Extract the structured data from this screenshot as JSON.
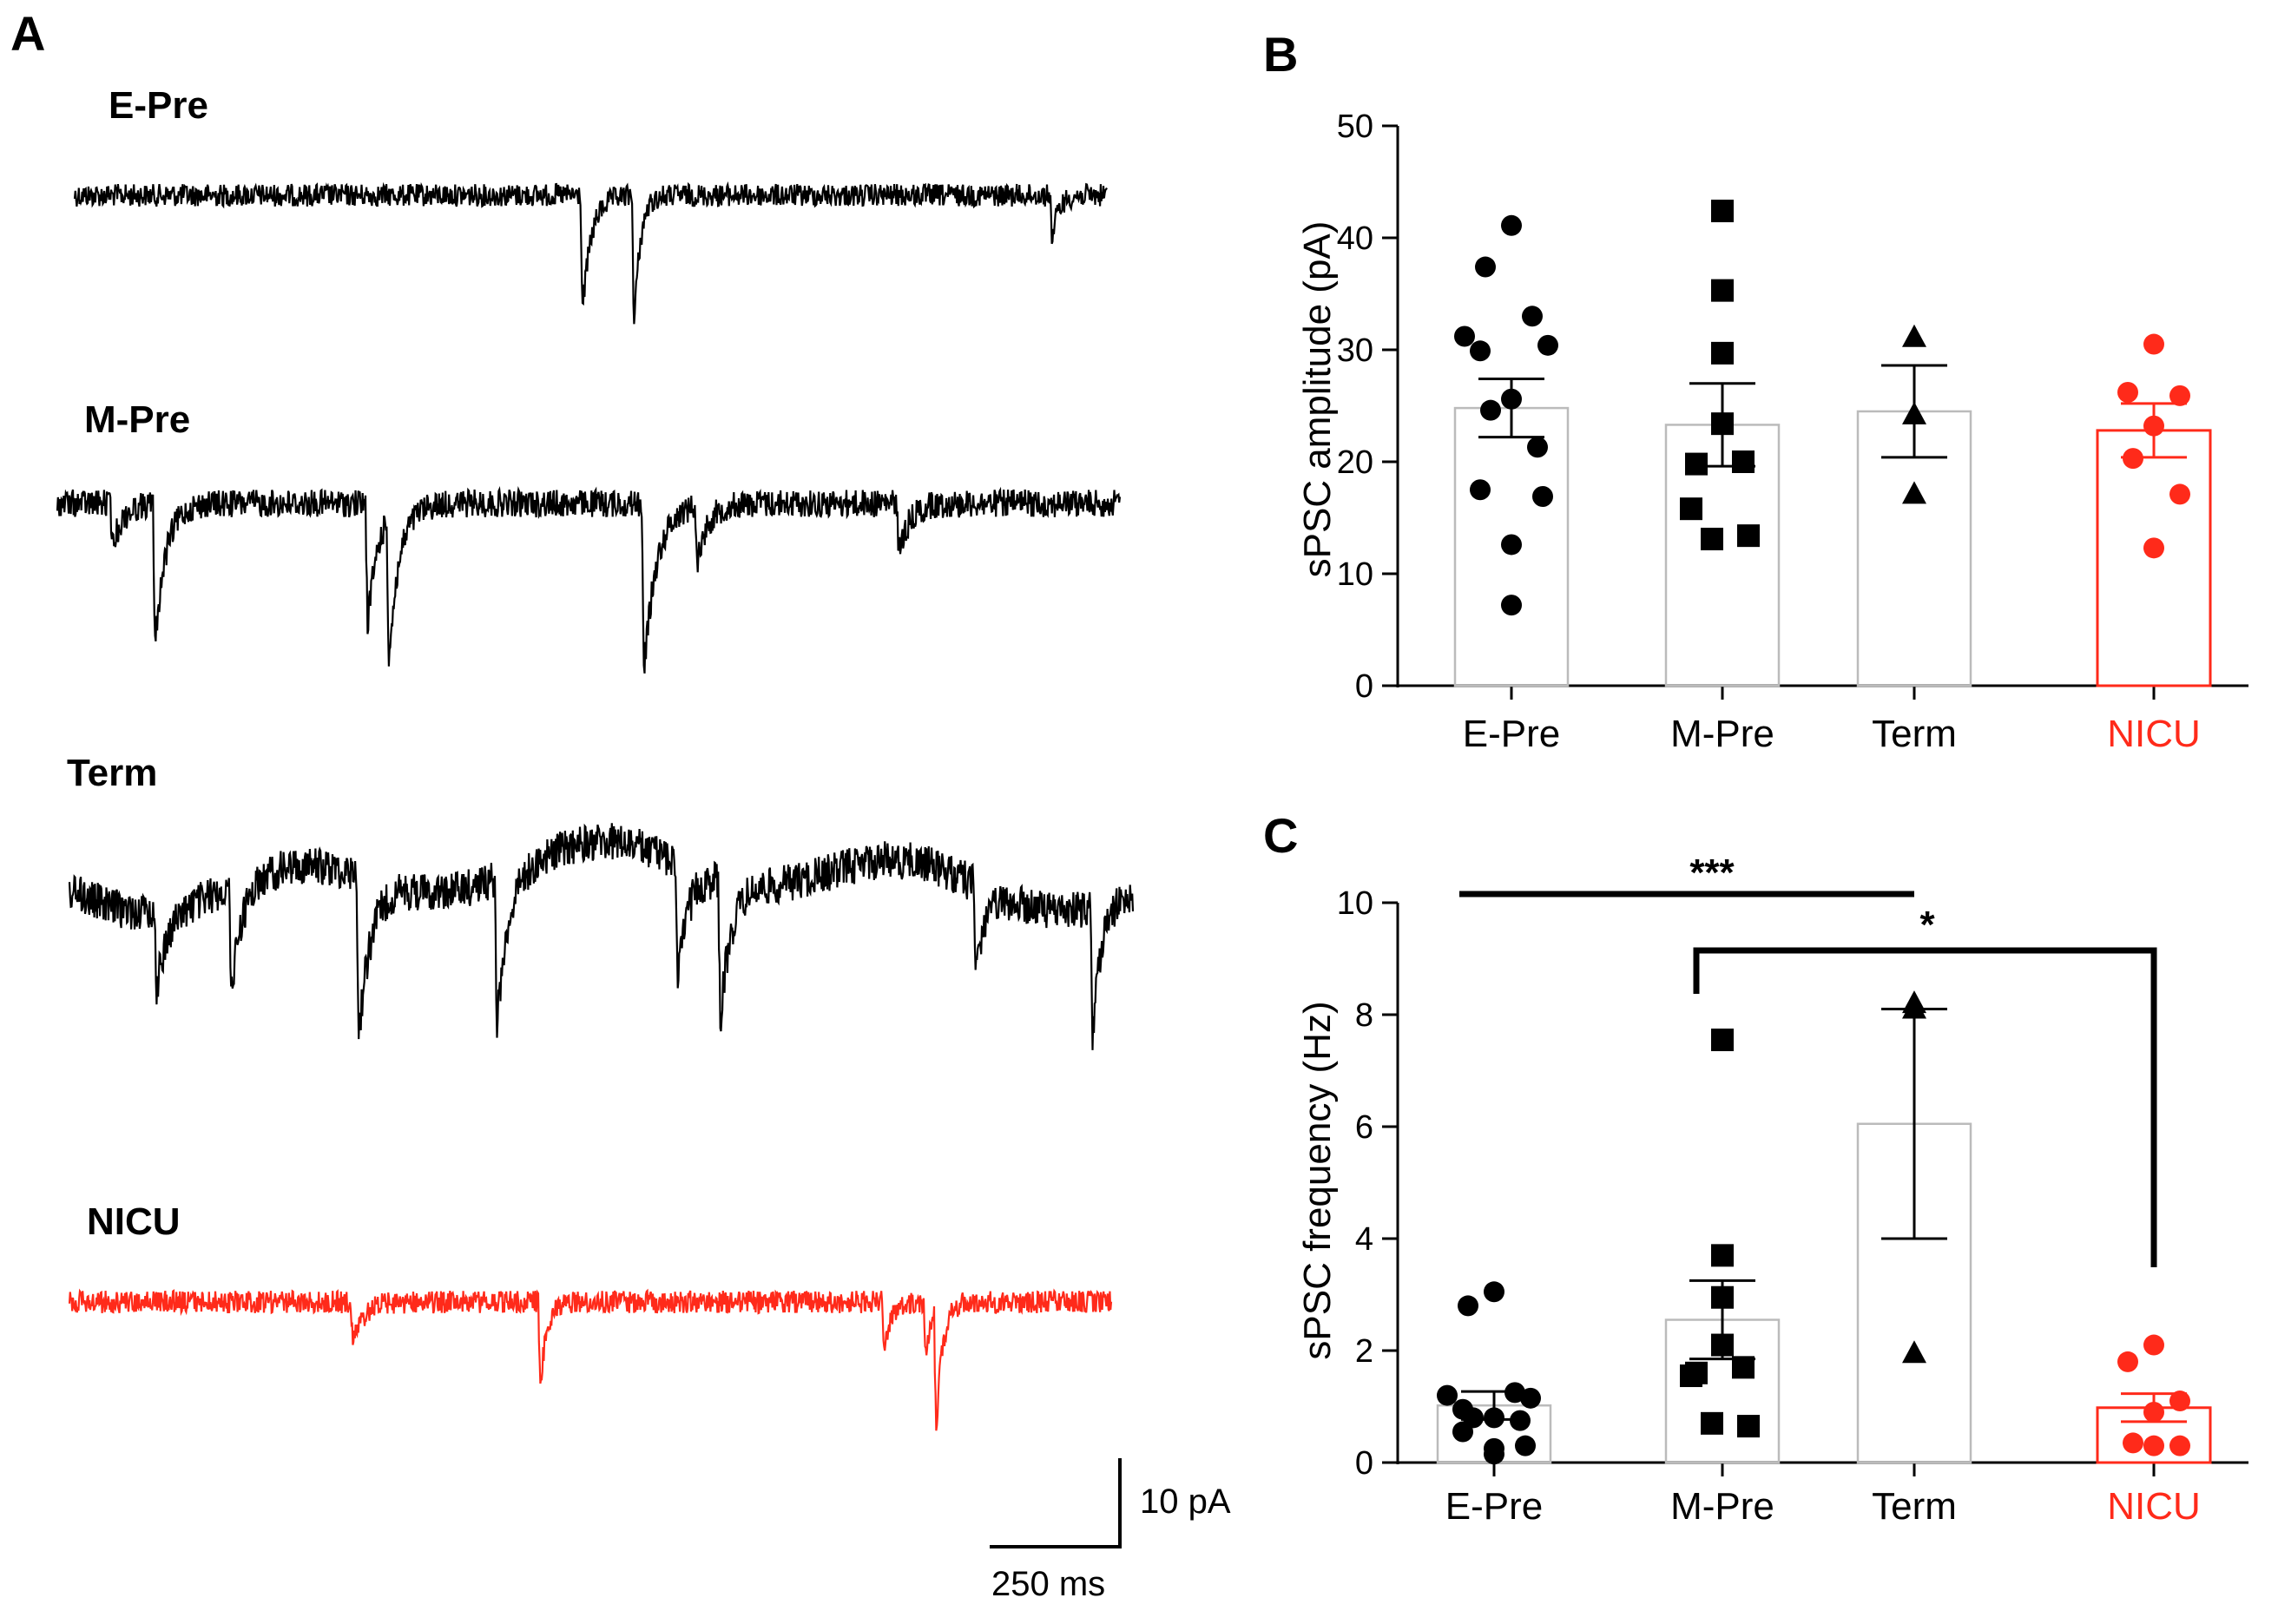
{
  "panels": {
    "a": "A",
    "b": "B",
    "c": "C"
  },
  "colors": {
    "control": "#000000",
    "nicu": "#ff2a1a",
    "bar": "#bbbbbb"
  },
  "traces": [
    {
      "label": "E-Pre",
      "color": "#000000"
    },
    {
      "label": "M-Pre",
      "color": "#000000"
    },
    {
      "label": "Term",
      "color": "#000000"
    },
    {
      "label": "NICU",
      "color": "#ff2a1a"
    }
  ],
  "scalebar": {
    "amplitude": "10 pA",
    "time": "250 ms"
  },
  "chart_data": [
    {
      "panel": "B",
      "type": "bar",
      "ylabel": "sPSC amplitude (pA)",
      "ylim": [
        0,
        50
      ],
      "yticks": [
        0,
        10,
        20,
        30,
        40,
        50
      ],
      "categories": [
        "E-Pre",
        "M-Pre",
        "Term",
        "NICU"
      ],
      "means": [
        24.8,
        23.3,
        24.5,
        22.8
      ],
      "sem": [
        2.6,
        3.7,
        4.1,
        2.4
      ],
      "markers": [
        "circle",
        "square",
        "triangle",
        "circle"
      ],
      "points": [
        [
          41.1,
          37.4,
          33.0,
          31.2,
          30.4,
          29.9,
          25.6,
          24.6,
          21.3,
          17.5,
          16.9,
          12.6,
          7.2
        ],
        [
          42.4,
          35.3,
          29.7,
          23.4,
          20.0,
          19.8,
          15.8,
          13.4,
          13.1
        ],
        [
          31.1,
          24.2,
          17.1
        ],
        [
          30.5,
          26.2,
          25.9,
          23.2,
          20.3,
          17.1,
          12.3
        ]
      ]
    },
    {
      "panel": "C",
      "type": "bar",
      "ylabel": "sPSC frequency (Hz)",
      "ylim": [
        0,
        10
      ],
      "yticks": [
        0,
        2,
        4,
        6,
        8,
        10
      ],
      "categories": [
        "E-Pre",
        "M-Pre",
        "Term",
        "NICU"
      ],
      "means": [
        1.02,
        2.55,
        6.05,
        0.98
      ],
      "sem": [
        0.25,
        0.7,
        2.05,
        0.25
      ],
      "markers": [
        "circle",
        "square",
        "triangle",
        "circle"
      ],
      "points": [
        [
          3.05,
          2.8,
          1.25,
          1.2,
          1.15,
          0.95,
          0.8,
          0.8,
          0.75,
          0.55,
          0.3,
          0.25,
          0.15
        ],
        [
          7.55,
          3.7,
          2.95,
          2.1,
          1.7,
          1.6,
          1.55,
          0.65,
          0.7
        ],
        [
          8.2,
          8.1,
          1.95
        ],
        [
          2.1,
          1.8,
          1.1,
          0.9,
          0.35,
          0.3,
          0.3
        ]
      ],
      "significance": [
        {
          "from": "E-Pre",
          "to": "Term",
          "label": "***"
        },
        {
          "from": "M-Pre",
          "to": "NICU",
          "label": "*"
        }
      ]
    }
  ]
}
